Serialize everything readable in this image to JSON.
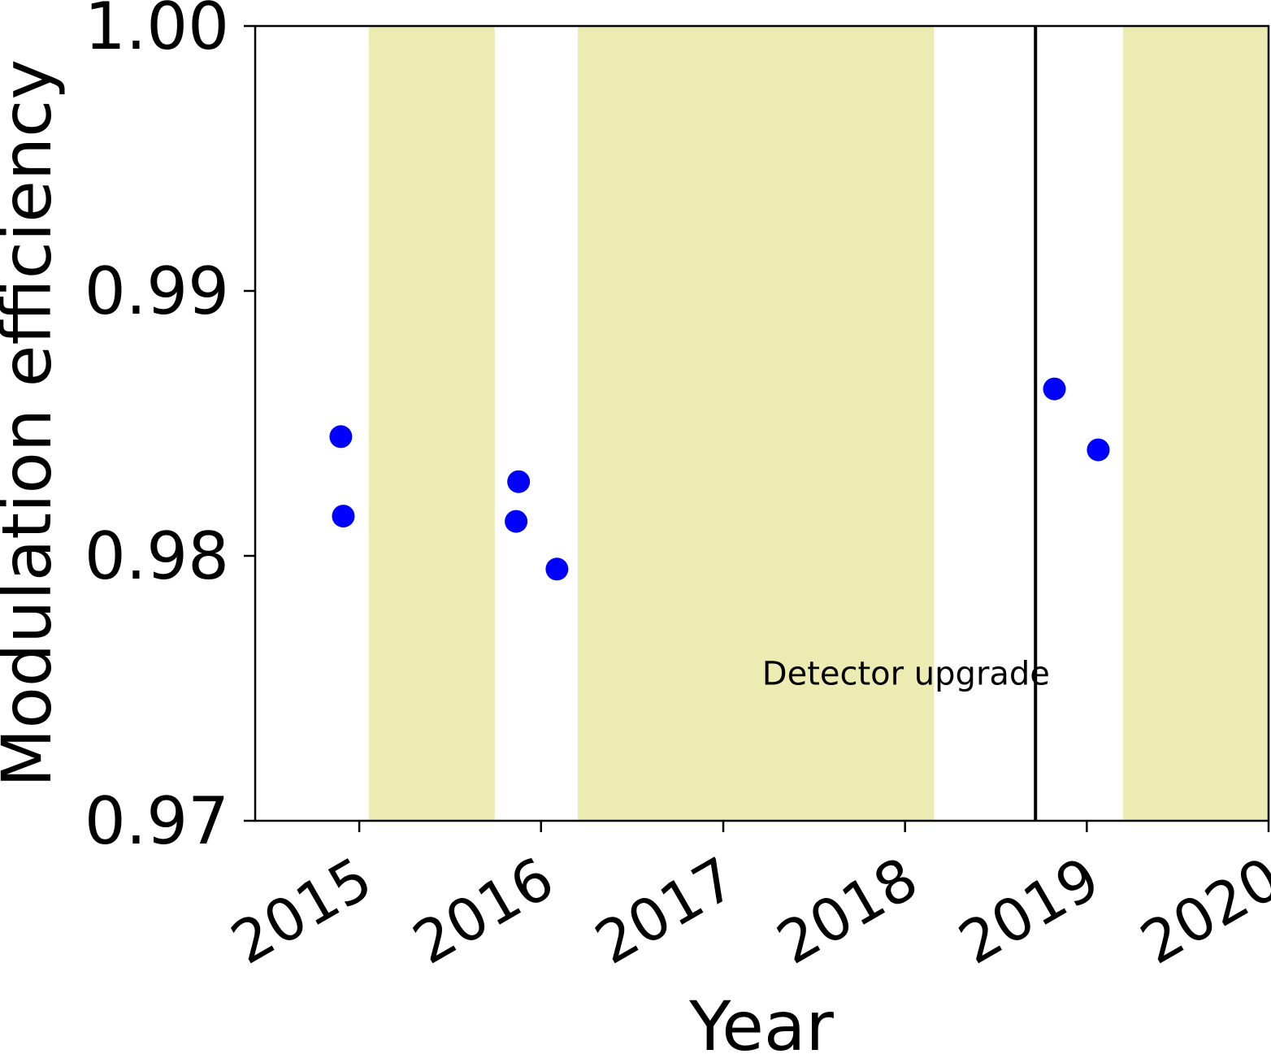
{
  "chart_data": {
    "type": "scatter",
    "xlabel": "Year",
    "ylabel": "Modulation efficiency",
    "xlim": [
      "2014-06-06",
      "2020-01-01"
    ],
    "ylim": [
      0.97,
      1.0
    ],
    "x_ticks": [
      "2015",
      "2016",
      "2017",
      "2018",
      "2019",
      "2020"
    ],
    "y_ticks": [
      "0.97",
      "0.98",
      "0.99",
      "1.00"
    ],
    "grid": false,
    "series": [
      {
        "color": "#0000ff",
        "points": [
          {
            "x": "2014-11-25",
            "y": 0.9845
          },
          {
            "x": "2014-11-30",
            "y": 0.9815
          },
          {
            "x": "2015-11-12",
            "y": 0.9813
          },
          {
            "x": "2015-11-17",
            "y": 0.9828
          },
          {
            "x": "2016-02-02",
            "y": 0.9795
          },
          {
            "x": "2018-10-28",
            "y": 0.9863
          },
          {
            "x": "2019-01-24",
            "y": 0.984
          }
        ]
      }
    ],
    "shaded_periods": [
      {
        "start": "2015-01-20",
        "end": "2015-09-30",
        "color": "#ebebb2"
      },
      {
        "start": "2016-03-15",
        "end": "2018-02-28",
        "color": "#ebebb2"
      },
      {
        "start": "2019-03-15",
        "end": "2020-01-01",
        "color": "#ebebb2"
      }
    ],
    "vlines": [
      {
        "x": "2018-09-20",
        "color": "#000000"
      }
    ],
    "annotations": [
      {
        "text": "Detector upgrade",
        "x": "2017-03-20",
        "y": 0.9755
      }
    ]
  }
}
